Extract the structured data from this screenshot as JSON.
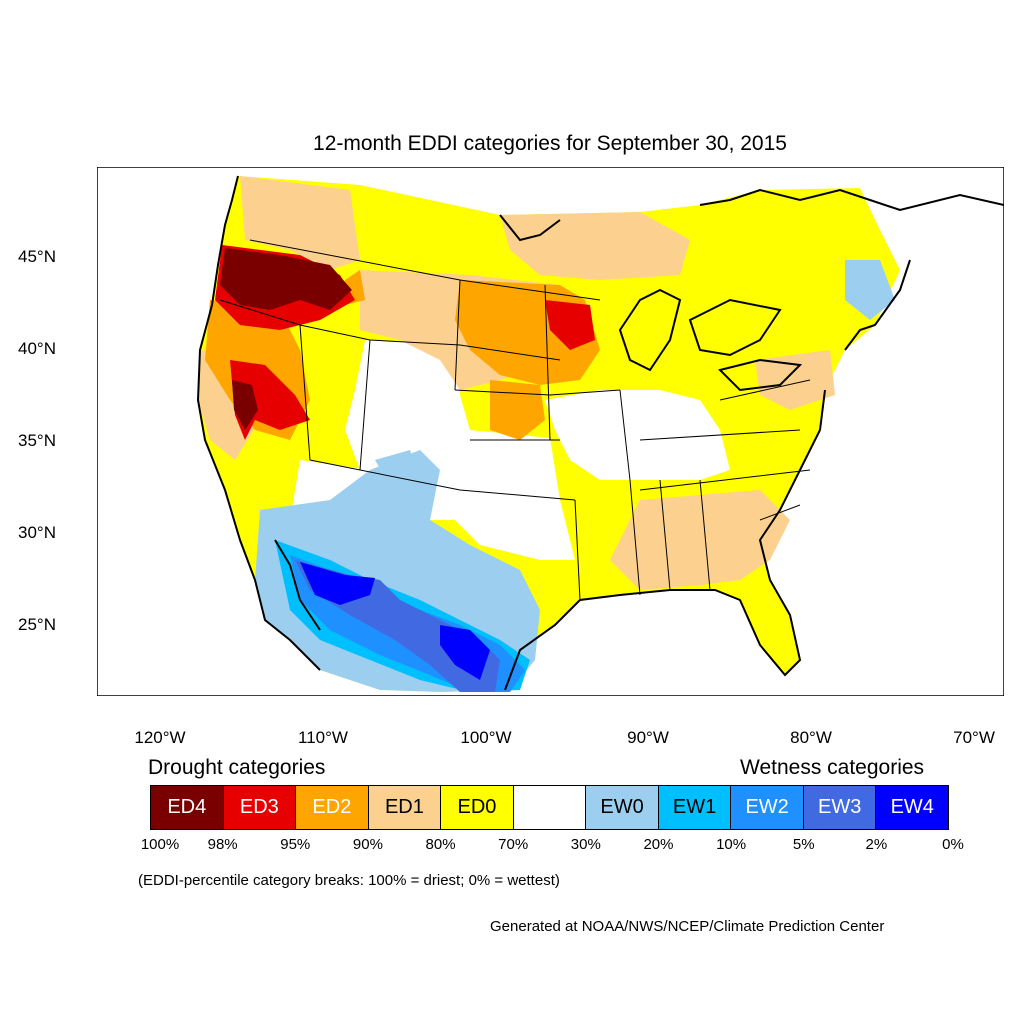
{
  "title": "12-month EDDI categories for September 30, 2015",
  "lat_ticks": [
    "45°N",
    "40°N",
    "35°N",
    "30°N",
    "25°N"
  ],
  "lon_ticks": [
    "120°W",
    "110°W",
    "100°W",
    "90°W",
    "80°W",
    "70°W"
  ],
  "legend": {
    "drought_heading": "Drought categories",
    "wetness_heading": "Wetness categories",
    "categories": [
      {
        "label": "ED4",
        "color": "#7a0000",
        "text_color": "#ffffff"
      },
      {
        "label": "ED3",
        "color": "#e60000",
        "text_color": "#ffffff"
      },
      {
        "label": "ED2",
        "color": "#ffa500",
        "text_color": "#ffffff"
      },
      {
        "label": "ED1",
        "color": "#fcd08e",
        "text_color": "#000000"
      },
      {
        "label": "ED0",
        "color": "#ffff00",
        "text_color": "#000000"
      },
      {
        "label": "",
        "color": "#ffffff",
        "text_color": "#000000"
      },
      {
        "label": "EW0",
        "color": "#9ccfef",
        "text_color": "#000000"
      },
      {
        "label": "EW1",
        "color": "#00bfff",
        "text_color": "#000000"
      },
      {
        "label": "EW2",
        "color": "#1e90ff",
        "text_color": "#ffffff"
      },
      {
        "label": "EW3",
        "color": "#4169e1",
        "text_color": "#ffffff"
      },
      {
        "label": "EW4",
        "color": "#0000ff",
        "text_color": "#ffffff"
      }
    ],
    "breaks": [
      "100%",
      "98%",
      "95%",
      "90%",
      "80%",
      "70%",
      "30%",
      "20%",
      "10%",
      "5%",
      "2%",
      "0%"
    ]
  },
  "note": "(EDDI-percentile category breaks: 100% = driest; 0% = wettest)",
  "credit": "Generated at NOAA/NWS/NCEP/Climate Prediction Center"
}
